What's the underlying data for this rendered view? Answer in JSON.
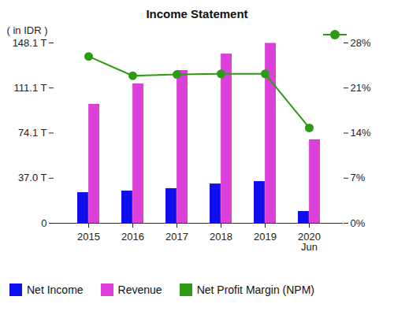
{
  "chart_data": {
    "type": "bar",
    "title": "Income Statement",
    "ylabel": "( in IDR )",
    "categories": [
      "2015",
      "2016",
      "2017",
      "2018",
      "2019",
      "2020\nJun"
    ],
    "series": [
      {
        "name": "Net Income",
        "color": "#1010ee",
        "values": [
          25.2,
          26.5,
          28.5,
          32.3,
          34.3,
          9.7
        ]
      },
      {
        "name": "Revenue",
        "color": "#dd40d8",
        "values": [
          97.7,
          114.5,
          125.5,
          139.0,
          147.8,
          68.6
        ]
      },
      {
        "name": "Net Profit Margin (NPM)",
        "color": "#2d9a14",
        "type": "line",
        "marker": "circle",
        "axis": "y2",
        "values": [
          25.9,
          22.9,
          23.1,
          23.2,
          23.2,
          14.8
        ]
      }
    ],
    "ylim": [
      0,
      148.1
    ],
    "yticks": [
      0,
      {
        "value": 37.0,
        "label": "37.0 T"
      },
      {
        "value": 74.1,
        "label": "74.1 T"
      },
      {
        "value": 111.1,
        "label": "111.1 T"
      },
      {
        "value": 148.1,
        "label": "148.1 T"
      }
    ],
    "y2lim": [
      0,
      28
    ],
    "y2ticks": [
      {
        "value": 0,
        "label": "0%"
      },
      {
        "value": 7,
        "label": "7%"
      },
      {
        "value": 14,
        "label": "14%"
      },
      {
        "value": 21,
        "label": "21%"
      },
      {
        "value": 28,
        "label": "28%"
      }
    ],
    "legend": "bottom",
    "grid": false
  }
}
